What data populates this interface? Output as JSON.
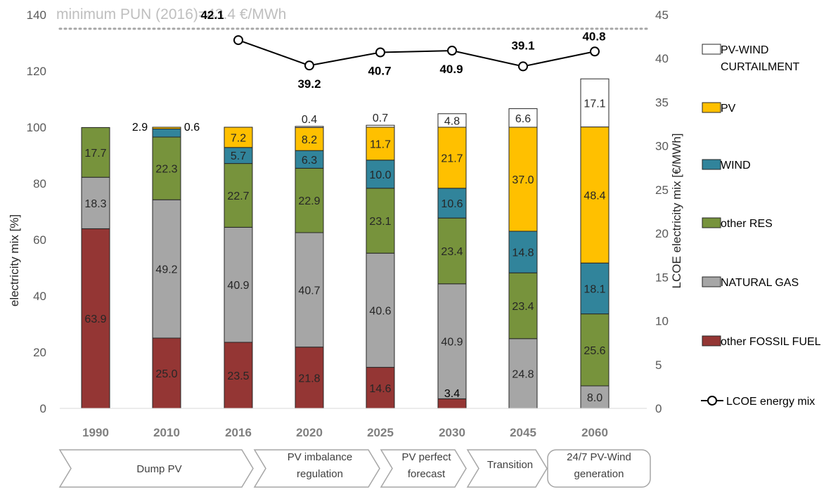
{
  "chart_data": {
    "type": "bar",
    "stacked": true,
    "categories": [
      "1990",
      "2010",
      "2016",
      "2020",
      "2025",
      "2030",
      "2045",
      "2060"
    ],
    "series": [
      {
        "name": "other FOSSIL FUEL",
        "color": "#943634",
        "values": [
          63.9,
          25.0,
          23.5,
          21.8,
          14.6,
          3.4,
          0,
          0
        ],
        "labels": [
          "63.9",
          "25.0",
          "23.5",
          "21.8",
          "14.6",
          "",
          "",
          ""
        ]
      },
      {
        "name": "NATURAL GAS",
        "color": "#a6a6a6",
        "values": [
          18.3,
          49.2,
          40.9,
          40.7,
          40.6,
          40.9,
          24.8,
          8.0
        ],
        "labels": [
          "18.3",
          "49.2",
          "40.9",
          "40.7",
          "40.6",
          "40.9",
          "24.8",
          "8.0"
        ]
      },
      {
        "name": "other RES",
        "color": "#77933c",
        "values": [
          17.7,
          22.3,
          22.7,
          22.9,
          23.1,
          23.4,
          23.4,
          25.6
        ],
        "labels": [
          "17.7",
          "22.3",
          "22.7",
          "22.9",
          "23.1",
          "23.4",
          "23.4",
          "25.6"
        ]
      },
      {
        "name": "WIND",
        "color": "#31849b",
        "values": [
          0,
          2.9,
          5.7,
          6.3,
          10.0,
          10.6,
          14.8,
          18.1
        ],
        "labels": [
          "",
          "",
          "5.7",
          "6.3",
          "10.0",
          "10.6",
          "14.8",
          "18.1"
        ]
      },
      {
        "name": "PV",
        "color": "#ffc000",
        "values": [
          0,
          0.6,
          7.2,
          8.2,
          11.7,
          21.7,
          37.0,
          48.4
        ],
        "labels": [
          "",
          "",
          "7.2",
          "8.2",
          "11.7",
          "21.7",
          "37.0",
          "48.4"
        ]
      },
      {
        "name": "PV-WIND CURTAILMENT",
        "color": "#ffffff",
        "values": [
          0,
          0,
          0,
          0.4,
          0.7,
          4.8,
          6.6,
          17.1
        ],
        "labels": [
          "",
          "",
          "",
          "0.4",
          "0.7",
          "4.8",
          "6.6",
          "17.1"
        ]
      }
    ],
    "extra_labels": [
      {
        "text": "2.9",
        "category_index": 1
      },
      {
        "text": "0.6",
        "category_index": 1
      },
      {
        "text": "3.4",
        "category_index": 5
      }
    ],
    "line_series": {
      "name": "LCOE energy mix",
      "axis": "right",
      "x": [
        "2016",
        "2020",
        "2025",
        "2030",
        "2045",
        "2060"
      ],
      "values": [
        42.1,
        39.2,
        40.7,
        40.9,
        39.1,
        40.8
      ],
      "labels": [
        "42.1",
        "39.2",
        "40.7",
        "40.9",
        "39.1",
        "40.8"
      ]
    },
    "reference_line": {
      "axis": "right",
      "value": 43.4,
      "label": "minimum PUN (2016)=43.4 €/MWh"
    },
    "ylabel": "electricity mix [%]",
    "y2label": "LCOE  electricity mix [€/MWh]",
    "ylim": [
      0,
      140
    ],
    "yticks": [
      "0",
      "20",
      "40",
      "60",
      "80",
      "100",
      "120",
      "140"
    ],
    "y2lim": [
      0,
      45
    ],
    "y2ticks": [
      "0",
      "5",
      "10",
      "15",
      "20",
      "25",
      "30",
      "35",
      "40",
      "45"
    ],
    "legend_position": "right",
    "legend": [
      "PV-WIND CURTAILMENT",
      "PV",
      "WIND",
      "other RES",
      "NATURAL GAS",
      "other FOSSIL FUEL",
      "LCOE energy mix"
    ],
    "phases": [
      {
        "label": "Dump PV",
        "start": 0,
        "end": 2
      },
      {
        "label": "PV imbalance regulation",
        "start": 3,
        "end": 3
      },
      {
        "label": "PV perfect forecast",
        "start": 4,
        "end": 4
      },
      {
        "label": "Transition",
        "start": 5,
        "end": 5
      },
      {
        "label": "24/7 PV-Wind generation",
        "start": 6,
        "end": 7
      }
    ],
    "grid": false
  }
}
